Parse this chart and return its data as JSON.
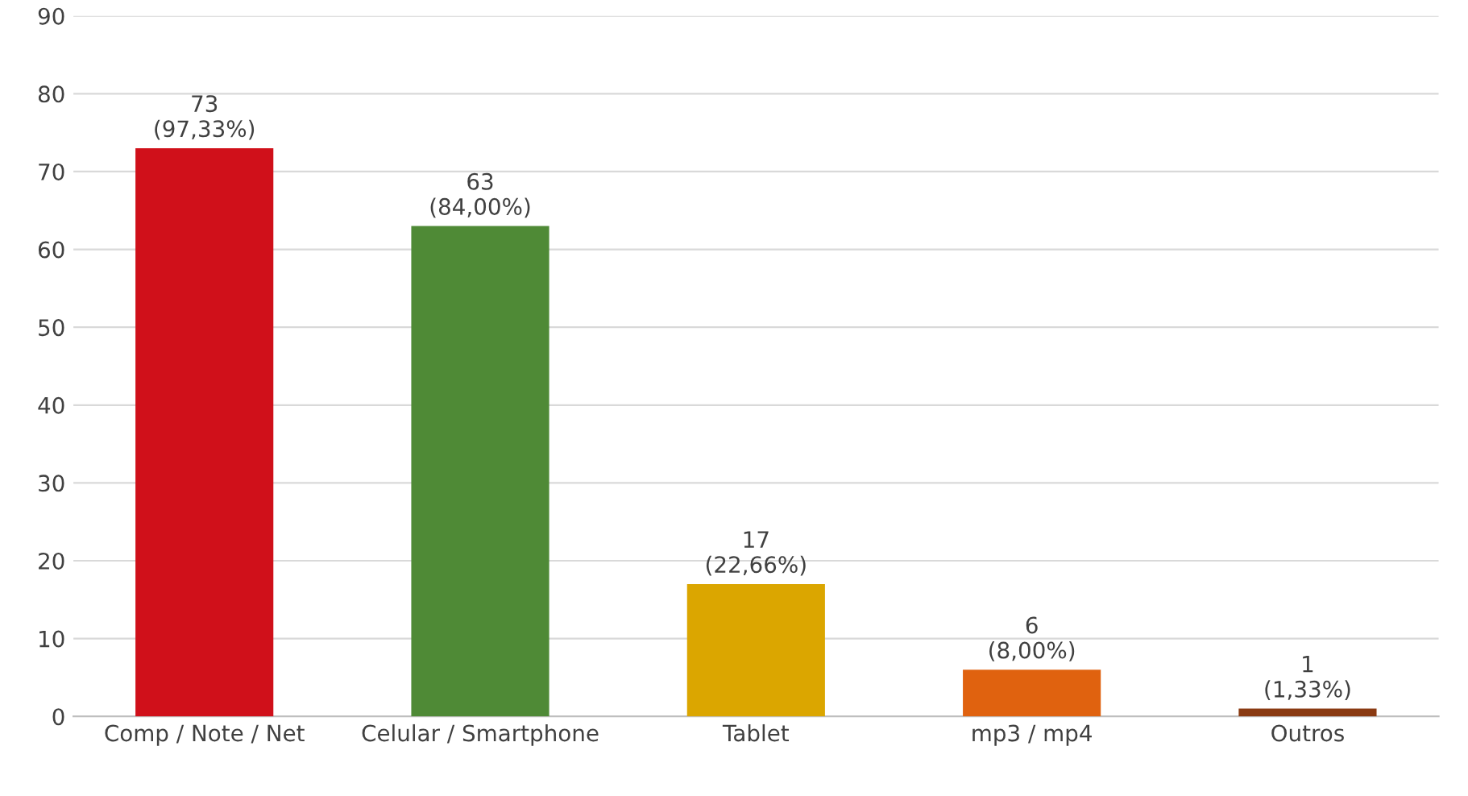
{
  "chart_data": {
    "type": "bar",
    "categories": [
      "Comp / Note / Net",
      "Celular / Smartphone",
      "Tablet",
      "mp3 / mp4",
      "Outros"
    ],
    "values": [
      73,
      63,
      17,
      6,
      1
    ],
    "colors": [
      "#d0101a",
      "#4f8a36",
      "#dba600",
      "#e0620f",
      "#8a3a12"
    ],
    "value_labels": [
      "73\n(97,33%)",
      "63\n(84,00%)",
      "17\n(22,66%)",
      "6\n(8,00%)",
      "1\n(1,33%)"
    ],
    "ylim": [
      0,
      90
    ],
    "yticks": [
      0,
      10,
      20,
      30,
      40,
      50,
      60,
      70,
      80,
      90
    ],
    "grid": "y"
  }
}
